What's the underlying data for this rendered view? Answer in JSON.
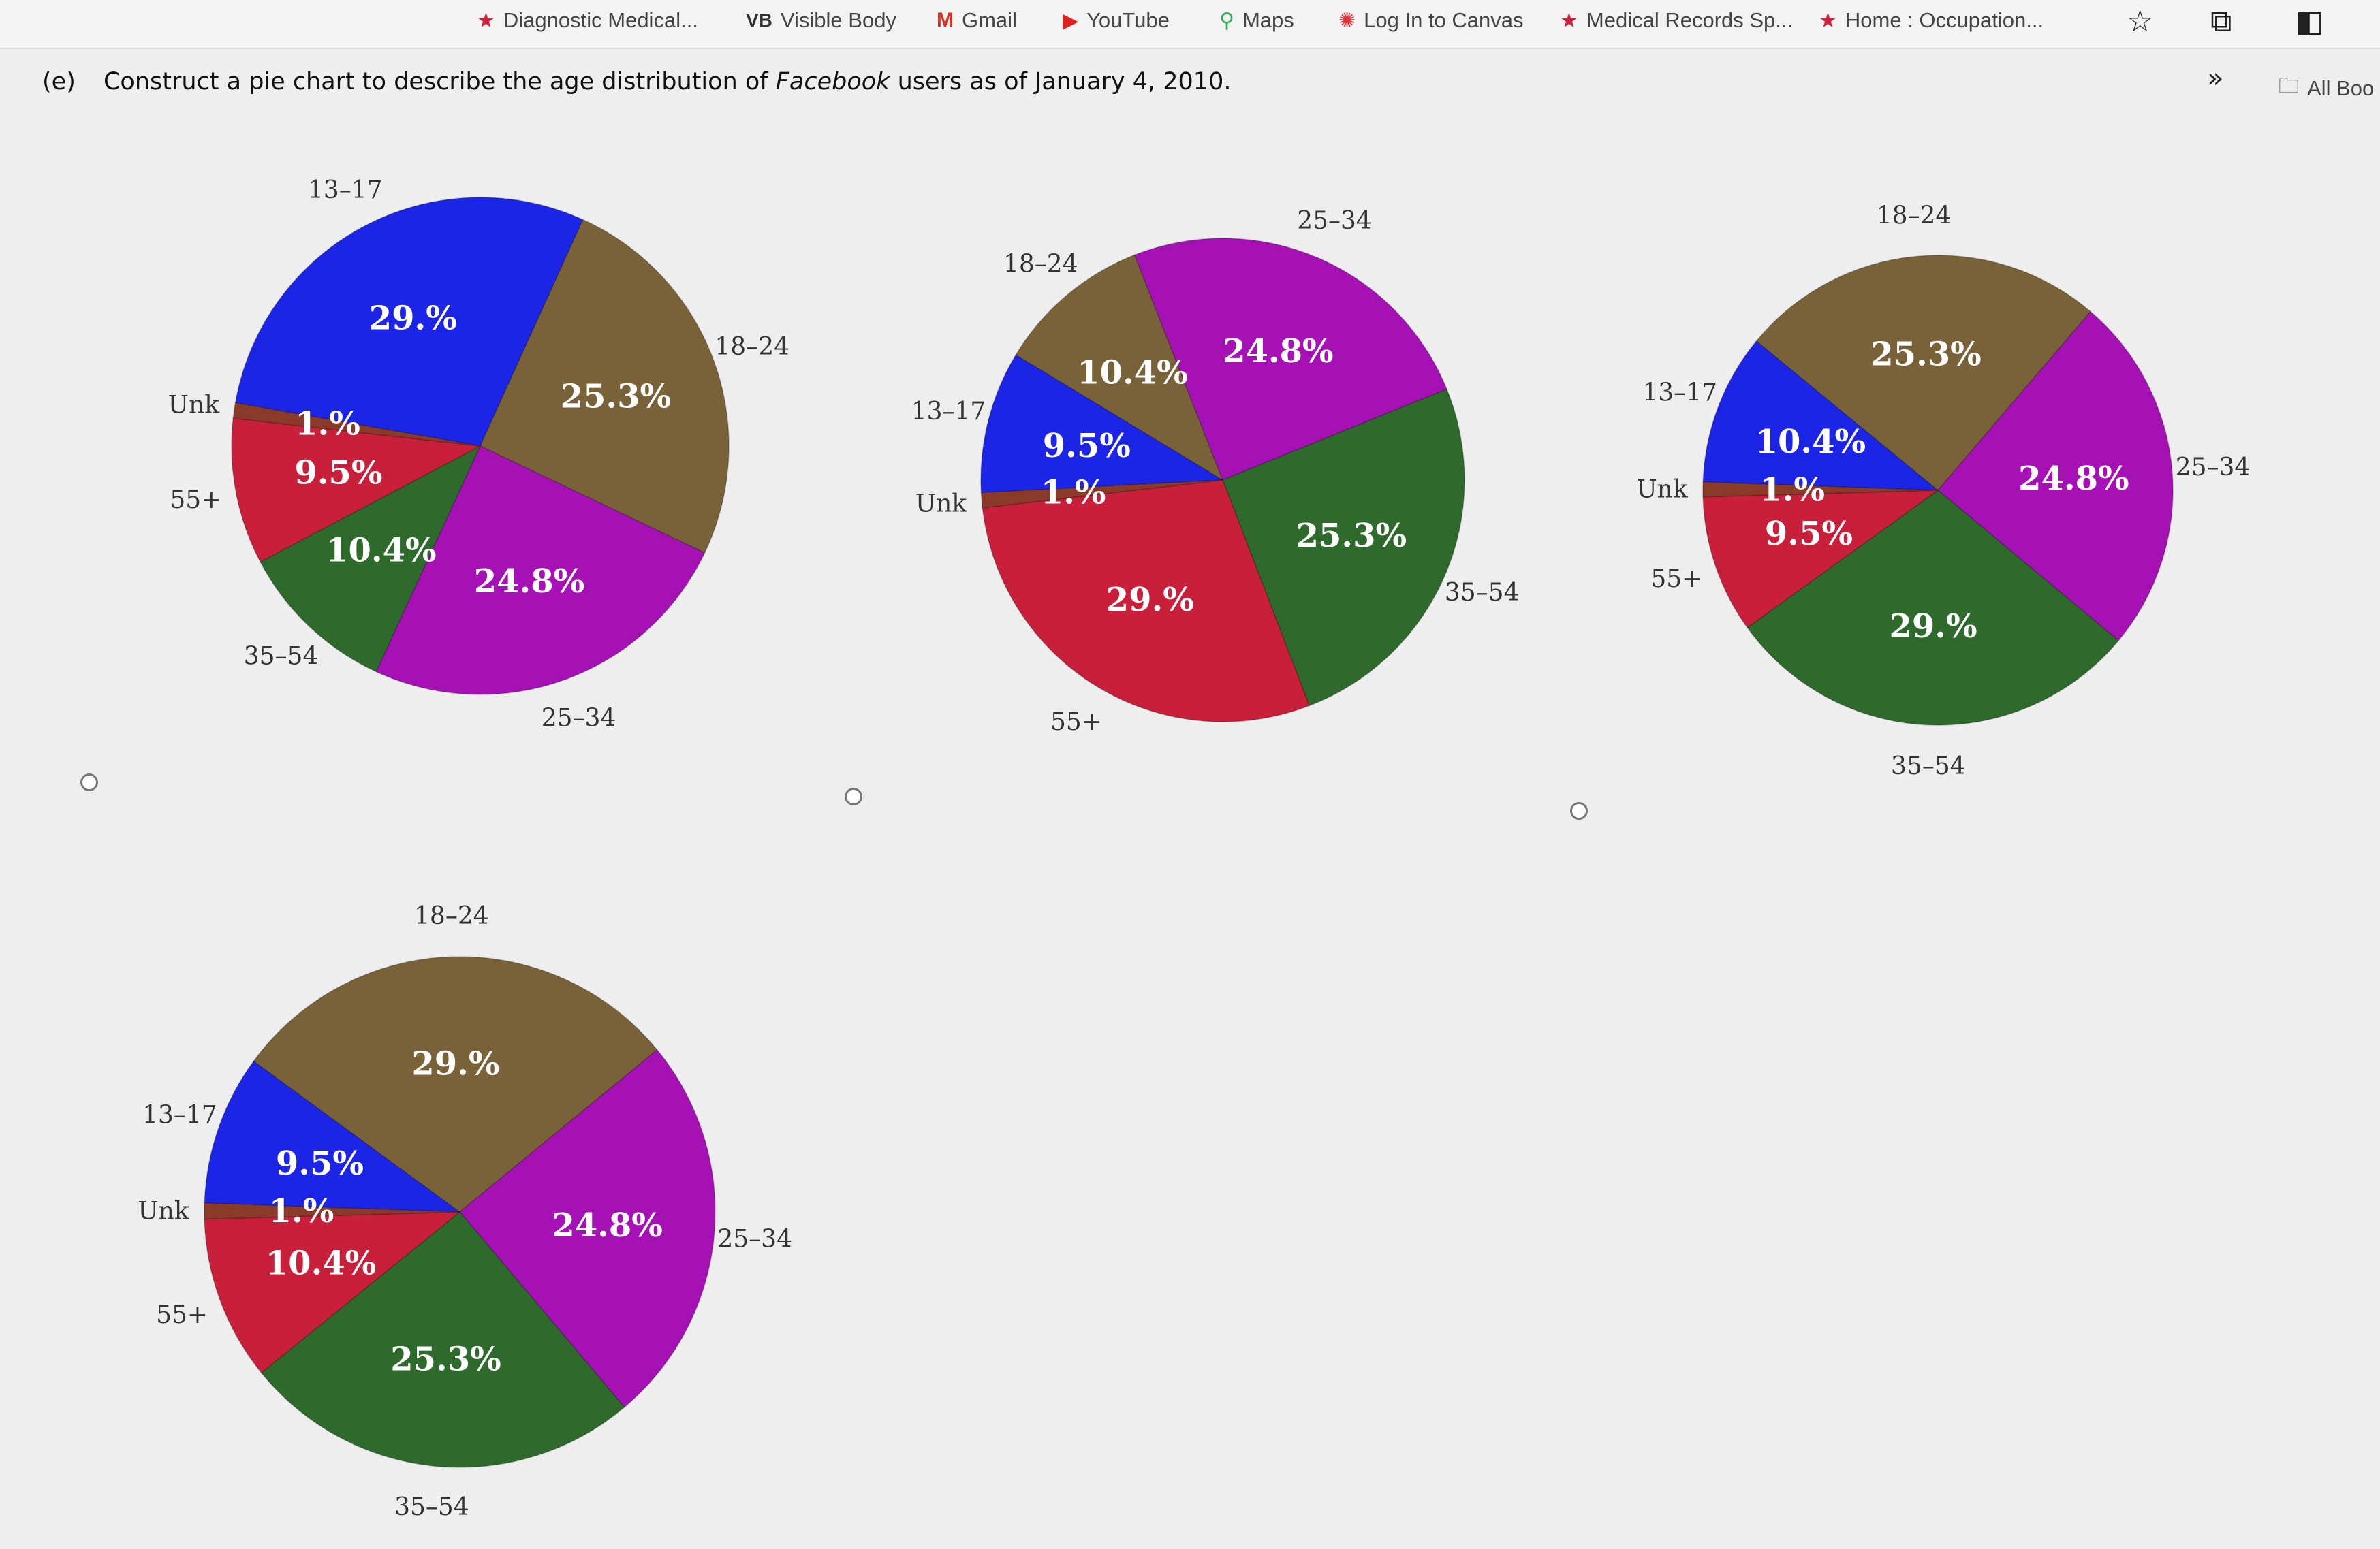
{
  "browser": {
    "bookmarks": [
      {
        "label": "Diagnostic Medical...",
        "icon": "star-icon"
      },
      {
        "label": "Visible Body",
        "icon": "vb-icon"
      },
      {
        "label": "Gmail",
        "icon": "gmail-icon"
      },
      {
        "label": "YouTube",
        "icon": "youtube-icon"
      },
      {
        "label": "Maps",
        "icon": "maps-icon"
      },
      {
        "label": "Log In to Canvas",
        "icon": "canvas-icon"
      },
      {
        "label": "Medical Records Sp...",
        "icon": "star-icon"
      },
      {
        "label": "Home : Occupation...",
        "icon": "star-icon"
      },
      {
        "label": "All Boo",
        "icon": "folder-icon"
      }
    ],
    "vb_badge": "VB",
    "overflow_glyph": "»"
  },
  "question": {
    "part": "(e)",
    "text_before": "Construct a pie chart to describe the age distribution of",
    "emphasis": "Facebook",
    "text_after": "users as of January 4, 2010."
  },
  "colors": {
    "13-17": "#1c25e6",
    "18-24": "#7a6238",
    "25-34": "#a511b4",
    "35-54": "#2f6a2d",
    "55+": "#c81f3a",
    "Unk": "#8b3a2a"
  },
  "chart_data": [
    {
      "type": "pie",
      "option": "A",
      "slices": [
        {
          "category": "13–17",
          "value": 29.0,
          "label": "29.%"
        },
        {
          "category": "18–24",
          "value": 25.3,
          "label": "25.3%"
        },
        {
          "category": "25–34",
          "value": 24.8,
          "label": "24.8%"
        },
        {
          "category": "35–54",
          "value": 10.4,
          "label": "10.4%"
        },
        {
          "category": "55+",
          "value": 9.5,
          "label": "9.5%"
        },
        {
          "category": "Unk",
          "value": 1.0,
          "label": "1.%"
        }
      ]
    },
    {
      "type": "pie",
      "option": "B",
      "slices": [
        {
          "category": "13–17",
          "value": 9.5,
          "label": "9.5%"
        },
        {
          "category": "18–24",
          "value": 10.4,
          "label": "10.4%"
        },
        {
          "category": "25–34",
          "value": 24.8,
          "label": "24.8%"
        },
        {
          "category": "35–54",
          "value": 25.3,
          "label": "25.3%"
        },
        {
          "category": "55+",
          "value": 29.0,
          "label": "29.%"
        },
        {
          "category": "Unk",
          "value": 1.0,
          "label": "1.%"
        }
      ]
    },
    {
      "type": "pie",
      "option": "C",
      "slices": [
        {
          "category": "13–17",
          "value": 10.4,
          "label": "10.4%"
        },
        {
          "category": "18–24",
          "value": 25.3,
          "label": "25.3%"
        },
        {
          "category": "25–34",
          "value": 24.8,
          "label": "24.8%"
        },
        {
          "category": "35–54",
          "value": 29.0,
          "label": "29.%"
        },
        {
          "category": "55+",
          "value": 9.5,
          "label": "9.5%"
        },
        {
          "category": "Unk",
          "value": 1.0,
          "label": "1.%"
        }
      ]
    },
    {
      "type": "pie",
      "option": "D",
      "slices": [
        {
          "category": "13–17",
          "value": 9.5,
          "label": "9.5%"
        },
        {
          "category": "18–24",
          "value": 29.0,
          "label": "29.%"
        },
        {
          "category": "25–34",
          "value": 24.8,
          "label": "24.8%"
        },
        {
          "category": "35–54",
          "value": 25.3,
          "label": "25.3%"
        },
        {
          "category": "55+",
          "value": 10.4,
          "label": "10.4%"
        },
        {
          "category": "Unk",
          "value": 1.0,
          "label": "1.%"
        }
      ]
    }
  ]
}
